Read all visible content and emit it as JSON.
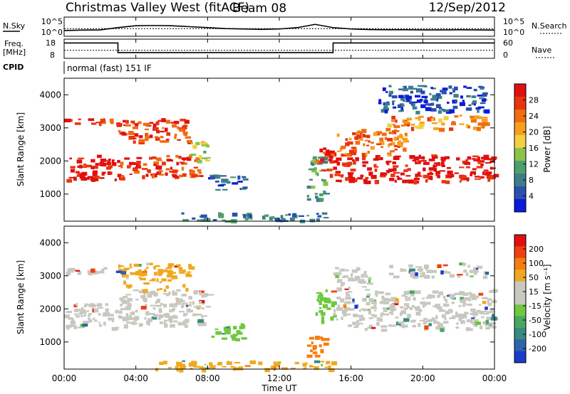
{
  "header": {
    "title": "Christmas Valley West (fitACF)",
    "beam": "Beam 08",
    "date": "12/Sep/2012"
  },
  "params": {
    "nsky_label": "N.Sky",
    "nsky_ticks": [
      "10^5",
      "10^0"
    ],
    "nsearch_label": "N.Search",
    "nsearch_ticks": [
      "10^5",
      "10^0"
    ],
    "freq_label_1": "Freq.",
    "freq_label_2": "[MHz]",
    "freq_ticks": [
      "18",
      "8"
    ],
    "nave_label": "Nave",
    "nave_ticks": [
      "60",
      "0"
    ],
    "cpid_label": "CPID",
    "cpid_value": "normal (fast) 151 IF"
  },
  "chart_data": [
    {
      "type": "line",
      "name": "sky-noise-panel",
      "x_unit": "hours UT",
      "xlim": [
        0,
        24
      ],
      "series": [
        {
          "label": "N.Sky",
          "x": [
            0,
            1,
            2,
            3,
            4,
            5,
            6,
            7,
            8,
            9,
            10,
            11,
            12,
            13,
            14,
            15,
            16,
            17,
            18,
            19,
            20,
            21,
            22,
            23,
            24
          ],
          "y_frac": [
            0.3,
            0.32,
            0.33,
            0.45,
            0.55,
            0.56,
            0.55,
            0.5,
            0.45,
            0.4,
            0.38,
            0.36,
            0.38,
            0.45,
            0.62,
            0.45,
            0.38,
            0.35,
            0.34,
            0.34,
            0.33,
            0.33,
            0.34,
            0.33,
            0.32
          ]
        },
        {
          "label": "N.Search",
          "x": [
            0,
            24
          ],
          "y_frac": [
            0.4,
            0.4
          ]
        }
      ]
    },
    {
      "type": "line",
      "name": "freq-nave-panel",
      "xlim": [
        0,
        24
      ],
      "series": [
        {
          "label": "Freq",
          "x": [
            0,
            3,
            3,
            15,
            15,
            24
          ],
          "y": [
            16,
            16,
            11,
            11,
            16,
            16
          ],
          "ylim": [
            8,
            18
          ]
        },
        {
          "label": "Nave",
          "x": [
            0,
            24
          ],
          "y": [
            25,
            25
          ],
          "ylim": [
            0,
            60
          ]
        }
      ]
    },
    {
      "type": "heatmap",
      "name": "power-panel",
      "xlabel": "",
      "ylabel": "Slant Range [km]",
      "xlim": [
        0,
        24
      ],
      "ylim": [
        180,
        4500
      ],
      "yticks": [
        "1000",
        "2000",
        "3000",
        "4000"
      ],
      "colorbar_label": "Power [dB]",
      "colorbar_ticks": [
        "28",
        "24",
        "20",
        "16",
        "12",
        "8",
        "4"
      ],
      "colorbar_colors": [
        "#0a1cd8",
        "#2a4fb0",
        "#3c7f8a",
        "#4ea06a",
        "#89c34a",
        "#f2d040",
        "#f7a020",
        "#f06d10",
        "#e83510",
        "#e01010"
      ],
      "regions": [
        {
          "t0": 0.0,
          "t1": 3.0,
          "r0": 1450,
          "r1": 2200,
          "level": 0.95
        },
        {
          "t0": 0.0,
          "t1": 3.0,
          "r0": 3100,
          "r1": 3300,
          "level": 0.9
        },
        {
          "t0": 3.0,
          "t1": 7.5,
          "r0": 1500,
          "r1": 2200,
          "level": 0.85
        },
        {
          "t0": 3.0,
          "t1": 7.0,
          "r0": 2600,
          "r1": 3300,
          "level": 0.85
        },
        {
          "t0": 7.0,
          "t1": 8.0,
          "r0": 2000,
          "r1": 2600,
          "level": 0.5
        },
        {
          "t0": 8.0,
          "t1": 10.0,
          "r0": 1100,
          "r1": 1600,
          "level": 0.2
        },
        {
          "t0": 6.5,
          "t1": 14.5,
          "r0": 200,
          "r1": 450,
          "level": 0.25
        },
        {
          "t0": 13.5,
          "t1": 14.5,
          "r0": 800,
          "r1": 2200,
          "level": 0.35
        },
        {
          "t0": 14.0,
          "t1": 15.0,
          "r0": 1600,
          "r1": 2500,
          "level": 0.9
        },
        {
          "t0": 15.0,
          "t1": 24.0,
          "r0": 1400,
          "r1": 2200,
          "level": 0.95
        },
        {
          "t0": 15.0,
          "t1": 19.0,
          "r0": 2200,
          "r1": 3000,
          "level": 0.75
        },
        {
          "t0": 18.0,
          "t1": 23.5,
          "r0": 3000,
          "r1": 3400,
          "level": 0.7
        },
        {
          "t0": 17.5,
          "t1": 23.5,
          "r0": 3500,
          "r1": 4300,
          "level": 0.15
        }
      ]
    },
    {
      "type": "heatmap",
      "name": "velocity-panel",
      "xlabel": "Time UT",
      "ylabel": "Slant Range [km]",
      "xlim": [
        0,
        24
      ],
      "ylim": [
        180,
        4500
      ],
      "yticks": [
        "1000",
        "2000",
        "3000",
        "4000"
      ],
      "xticks": [
        "00:00",
        "04:00",
        "08:00",
        "12:00",
        "16:00",
        "20:00",
        "00:00"
      ],
      "colorbar_label": "Velocity [m s⁻¹]",
      "colorbar_ticks": [
        "200",
        "100",
        "50",
        "15",
        "-15",
        "-50",
        "-100",
        "-200"
      ],
      "colorbar_colors": [
        "#1a3cc8",
        "#2f64a8",
        "#3a8a82",
        "#4aa860",
        "#6ec840",
        "#c8c8c0",
        "#c8c8c0",
        "#f0a820",
        "#f57d10",
        "#f04010",
        "#e01010"
      ],
      "regions": [
        {
          "t0": 0.0,
          "t1": 3.0,
          "r0": 1450,
          "r1": 2200,
          "color": "#c8c8c0"
        },
        {
          "t0": 0.0,
          "t1": 3.0,
          "r0": 3100,
          "r1": 3300,
          "color": "#c8c8c0"
        },
        {
          "t0": 3.0,
          "t1": 8.0,
          "r0": 1500,
          "r1": 2600,
          "color": "#c8c8c0"
        },
        {
          "t0": 3.0,
          "t1": 7.0,
          "r0": 2600,
          "r1": 3400,
          "color": "#f0a820"
        },
        {
          "t0": 8.0,
          "t1": 10.0,
          "r0": 1100,
          "r1": 1600,
          "color": "#6ec840"
        },
        {
          "t0": 5.0,
          "t1": 15.0,
          "r0": 200,
          "r1": 450,
          "color": "#f0a820"
        },
        {
          "t0": 13.5,
          "t1": 14.5,
          "r0": 600,
          "r1": 1200,
          "color": "#f57d10"
        },
        {
          "t0": 14.0,
          "t1": 15.0,
          "r0": 1600,
          "r1": 2600,
          "color": "#6ec840"
        },
        {
          "t0": 15.0,
          "t1": 24.0,
          "r0": 1400,
          "r1": 2600,
          "color": "#c8c8c0"
        },
        {
          "t0": 15.0,
          "t1": 17.0,
          "r0": 2600,
          "r1": 3300,
          "color": "#c8c8c0"
        },
        {
          "t0": 18.0,
          "t1": 23.5,
          "r0": 3000,
          "r1": 3400,
          "color": "#c8c8c0"
        }
      ]
    }
  ]
}
